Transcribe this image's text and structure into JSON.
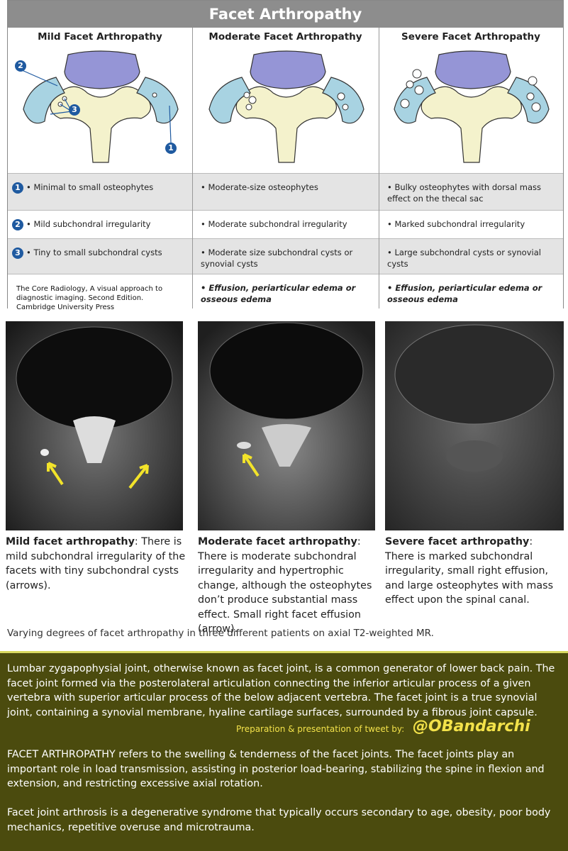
{
  "header": {
    "title": "Facet Arthropathy"
  },
  "diagram": {
    "columns": [
      "Mild Facet Arthropathy",
      "Moderate Facet Arthropathy",
      "Severe Facet Arthropathy"
    ],
    "callouts": [
      "2",
      "3",
      "1"
    ]
  },
  "table": {
    "rows": [
      {
        "marker": "1",
        "cells": [
          "• Minimal to small osteophytes",
          "• Moderate-size osteophytes",
          "• Bulky osteophytes with dorsal mass effect on the thecal sac"
        ]
      },
      {
        "marker": "2",
        "cells": [
          "• Mild subchondral irregularity",
          "• Moderate subchondral irregularity",
          "• Marked subchondral irregularity"
        ]
      },
      {
        "marker": "3",
        "cells": [
          "• Tiny to small subchondral cysts",
          "• Moderate size subchondral cysts or synovial cysts",
          "• Large subchondral cysts or synovial cysts"
        ]
      },
      {
        "cells": [
          "The Core Radiology, A visual approach to diagnostic imaging. Second Edition.  Cambridge University Press",
          "• Effusion, periarticular edema or osseous edema",
          "• Effusion, periarticular edema or osseous edema"
        ]
      }
    ]
  },
  "captions": [
    {
      "term": "Mild facet arthropathy",
      "text": ": There is mild subchondral irregularity of the facets with tiny subchondral cysts (arrows)."
    },
    {
      "term": "Moderate facet arthropathy",
      "text": ": There is moderate subchondral irregularity and hypertrophic change, although the osteophytes don’t produce substantial mass effect. Small right facet effusion (arrow)."
    },
    {
      "term": "Severe facet arthropathy",
      "text": ": There is marked subchondral irregularity, small right effusion, and large osteophytes with mass effect upon the spinal canal."
    }
  ],
  "figure_caption": "Varying degrees of facet arthropathy in three different patients on axial T2-weighted MR.",
  "body": {
    "paragraphs": [
      "Lumbar zygapophysial joint, otherwise known as facet joint, is a common generator of lower back pain. The facet joint formed via the posterolateral articulation connecting the inferior articular process of a given vertebra with  superior articular process of the below adjacent vertebra. The facet joint is a true synovial joint, containing a synovial membrane, hyaline cartilage surfaces, surrounded by a fibrous joint capsule.",
      "FACET ARTHROPATHY refers to the swelling & tenderness of the facet joints. The facet joints play an important role in load transmission, assisting in posterior load-bearing, stabilizing the spine in flexion and extension, and restricting excessive axial rotation.",
      "Facet joint arthrosis is a degenerative syndrome that typically occurs secondary to age, obesity, poor body mechanics, repetitive overuse and microtrauma."
    ],
    "credit": "Preparation & presentation of tweet by:",
    "handle": "@OBandarchi"
  }
}
